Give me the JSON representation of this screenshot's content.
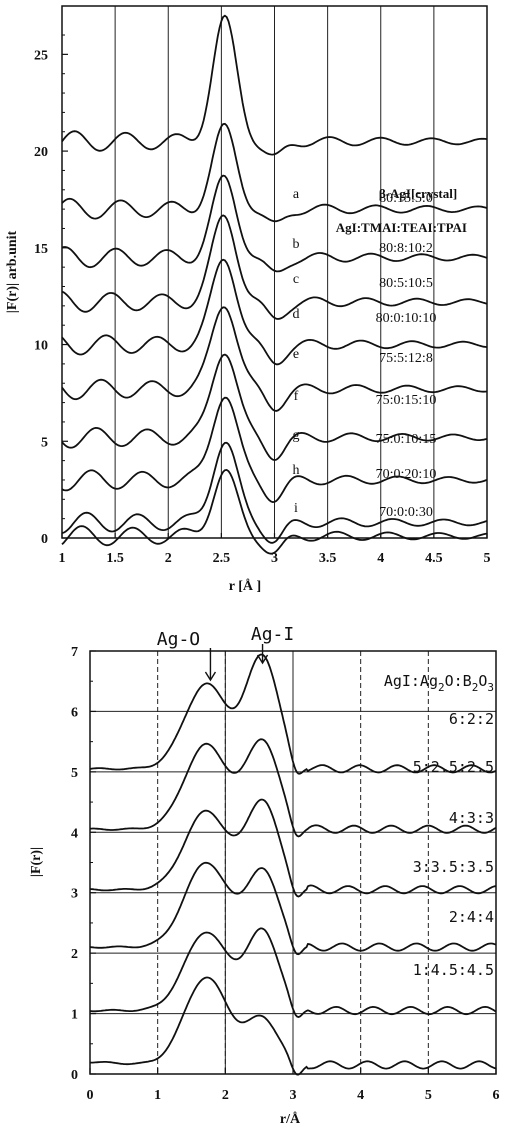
{
  "chart_data": [
    {
      "type": "line",
      "xlabel": "r [Å ]",
      "ylabel": "|F(r)| arb.unit",
      "xlim": [
        1,
        5
      ],
      "ylim": [
        0,
        27.5
      ],
      "x_ticks": [
        "1",
        "1.5",
        "2",
        "2.5",
        "3",
        "3.5",
        "4",
        "4.5",
        "5"
      ],
      "y_ticks": [
        "0",
        "5",
        "10",
        "15",
        "20",
        "25"
      ],
      "grid": "vertical",
      "legend_header": "AgI:TMAI:TEAI:TPAI",
      "series": [
        {
          "name": "β-AgI[crystal]",
          "letter": "",
          "composition": "",
          "baseline": 20.5,
          "peak_r": 2.53,
          "peak_height": 6.2
        },
        {
          "name": "a",
          "letter": "a",
          "composition": "80:15:5:0",
          "baseline": 17.0,
          "peak_r": 2.53,
          "peak_height": 4.1
        },
        {
          "name": "b",
          "letter": "b",
          "composition": "80:8:10:2",
          "baseline": 14.5,
          "peak_r": 2.53,
          "peak_height": 4.0
        },
        {
          "name": "c",
          "letter": "c",
          "composition": "80:5:10:5",
          "baseline": 12.2,
          "peak_r": 2.53,
          "peak_height": 4.4
        },
        {
          "name": "d",
          "letter": "d",
          "composition": "80:0:10:10",
          "baseline": 10.0,
          "peak_r": 2.53,
          "peak_height": 4.5
        },
        {
          "name": "e",
          "letter": "e",
          "composition": "75:5:12:8",
          "baseline": 7.7,
          "peak_r": 2.53,
          "peak_height": 4.5
        },
        {
          "name": "f",
          "letter": "f",
          "composition": "75:0:15:10",
          "baseline": 5.2,
          "peak_r": 2.53,
          "peak_height": 4.6
        },
        {
          "name": "g",
          "letter": "g",
          "composition": "75:0:10:15",
          "baseline": 3.0,
          "peak_r": 2.53,
          "peak_height": 4.5
        },
        {
          "name": "h",
          "letter": "h",
          "composition": "70:0:20:10",
          "baseline": 0.8,
          "peak_r": 2.53,
          "peak_height": 4.2
        },
        {
          "name": "i",
          "letter": "i",
          "composition": "70:0:0:30",
          "baseline": 0.1,
          "peak_r": 2.53,
          "peak_height": 3.3
        }
      ]
    },
    {
      "type": "line",
      "xlabel": "r/Å",
      "ylabel": "|F(r)|",
      "xlim": [
        0,
        6
      ],
      "ylim": [
        0,
        7
      ],
      "x_ticks": [
        "0",
        "1",
        "2",
        "3",
        "4",
        "5",
        "6"
      ],
      "y_ticks": [
        "0",
        "1",
        "2",
        "3",
        "4",
        "5",
        "6",
        "7"
      ],
      "grid": "both",
      "legend_header": "AgI:Ag2O:B2O3",
      "annotations": [
        {
          "text": "Ag-O",
          "x": 1.78
        },
        {
          "text": "Ag-I",
          "x": 2.55
        }
      ],
      "series": [
        {
          "name": "6:2:2",
          "baseline": 5.05,
          "peak1": 1.4,
          "peak2": 1.85,
          "valley": 0.75
        },
        {
          "name": "5:2.5:2.5",
          "baseline": 4.05,
          "peak1": 1.4,
          "peak2": 1.45,
          "valley": 0.7
        },
        {
          "name": "4:3:3",
          "baseline": 3.05,
          "peak1": 1.3,
          "peak2": 1.45,
          "valley": 0.55
        },
        {
          "name": "3:3.5:3.5",
          "baseline": 2.1,
          "peak1": 1.4,
          "peak2": 1.25,
          "valley": 0.4
        },
        {
          "name": "2:4:4",
          "baseline": 1.05,
          "peak1": 1.3,
          "peak2": 1.3,
          "valley": 0.3
        },
        {
          "name": "1:4.5:4.5",
          "baseline": 0.15,
          "peak1": 1.45,
          "peak2": 0.75,
          "valley": 0.45
        }
      ]
    }
  ]
}
